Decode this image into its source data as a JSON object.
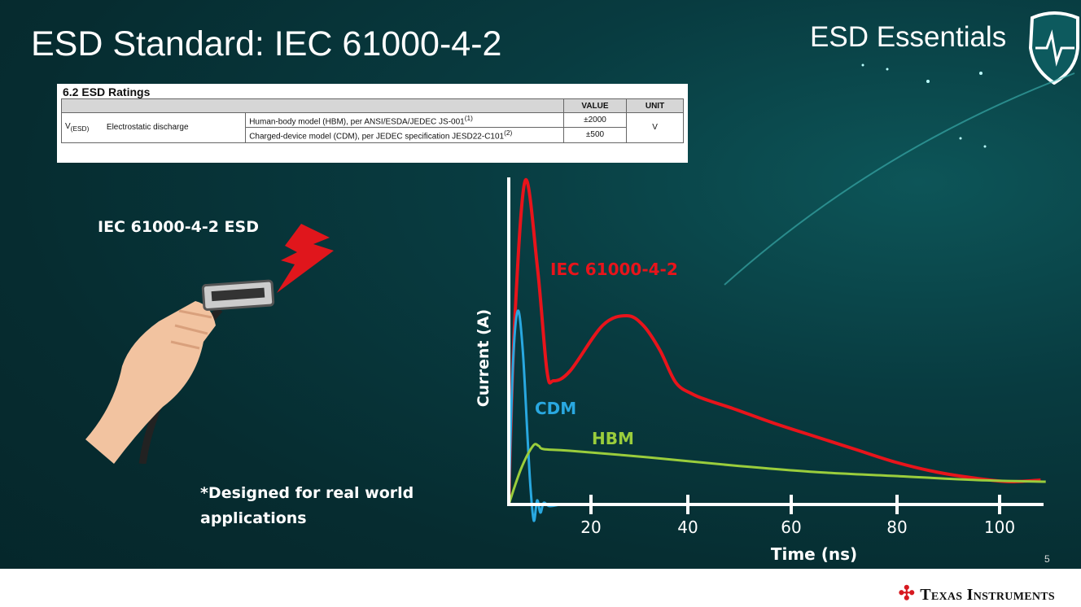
{
  "slide": {
    "title": "ESD Standard: IEC 61000-4-2",
    "brand": "ESD Essentials",
    "page_number": "5",
    "company": "Texas Instruments",
    "left_label": "IEC 61000-4-2 ESD",
    "note_line1": "*Designed for real world",
    "note_line2": "applications"
  },
  "ratings_table": {
    "heading": "6.2   ESD Ratings",
    "columns": [
      "VALUE",
      "UNIT"
    ],
    "symbol": "V",
    "symbol_sub": "(ESD)",
    "parameter": "Electrostatic discharge",
    "rows": [
      {
        "condition": "Human-body model (HBM), per ANSI/ESDA/JEDEC JS-001",
        "note": "(1)",
        "value": "±2000"
      },
      {
        "condition": "Charged-device model (CDM), per JEDEC specification JESD22-C101",
        "note": "(2)",
        "value": "±500"
      }
    ],
    "unit": "V"
  },
  "chart_data": {
    "type": "line",
    "xlabel": "Time (ns)",
    "ylabel": "Current (A)",
    "x_ticks": [
      20,
      40,
      60,
      80,
      100
    ],
    "xlim": [
      0,
      108
    ],
    "ylim": [
      0,
      1
    ],
    "grid": false,
    "series": [
      {
        "name": "IEC 61000-4-2",
        "color": "#e8141b",
        "x": [
          0,
          1.4,
          4,
          7,
          9.3,
          10.9,
          14.9,
          22.4,
          27.4,
          30.8,
          34.2,
          37.5,
          40.8,
          43.9,
          48.7,
          56.6,
          64.3,
          72,
          79.7,
          87.6,
          95.6,
          102,
          108
        ],
        "y": [
          0,
          0.55,
          0.995,
          0.725,
          0.41,
          0.38,
          0.41,
          0.55,
          0.58,
          0.55,
          0.475,
          0.375,
          0.34,
          0.32,
          0.295,
          0.25,
          0.21,
          0.17,
          0.13,
          0.1,
          0.08,
          0.07,
          0.075
        ]
      },
      {
        "name": "CDM",
        "color": "#29a8e0",
        "x": [
          0,
          1,
          2.2,
          3.4,
          4.6,
          5.3,
          6.1,
          6.9,
          7.7,
          8.5,
          9.9,
          12.5
        ],
        "y": [
          0,
          0.425,
          0.595,
          0.475,
          0.2,
          0.05,
          -0.05,
          0.0125,
          -0.025,
          0.005,
          -0.005,
          0
        ]
      },
      {
        "name": "HBM",
        "color": "#9acd3c",
        "x": [
          0,
          3,
          5.9,
          7.3,
          8.5,
          14.9,
          31.7,
          48.7,
          64.3,
          79.7,
          95.6,
          109
        ],
        "y": [
          0,
          0.11,
          0.18,
          0.18,
          0.17,
          0.165,
          0.145,
          0.12,
          0.1,
          0.0875,
          0.075,
          0.07
        ]
      }
    ]
  }
}
